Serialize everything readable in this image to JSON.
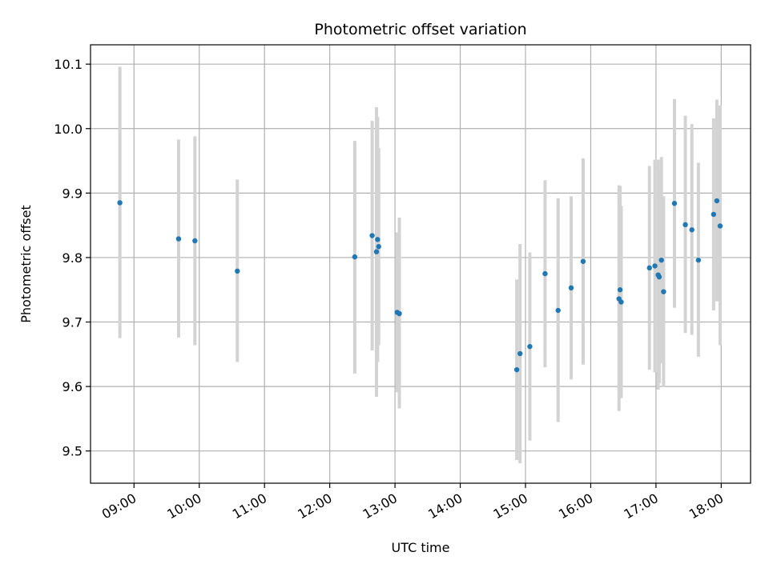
{
  "chart_data": {
    "type": "scatter",
    "title": "Photometric offset variation",
    "xlabel": "UTC time",
    "ylabel": "Photometric offset",
    "x_unit": "UTC time (HH:MM)",
    "xlim": [
      "08:20",
      "18:27"
    ],
    "ylim": [
      9.45,
      10.13
    ],
    "grid": true,
    "marker_color": "#1f77b4",
    "errorbar_color": "#d3d3d3",
    "x_ticks": [
      "09:00",
      "10:00",
      "11:00",
      "12:00",
      "13:00",
      "14:00",
      "15:00",
      "16:00",
      "17:00",
      "18:00"
    ],
    "y_ticks": [
      9.5,
      9.6,
      9.7,
      9.8,
      9.9,
      10.0,
      10.1
    ],
    "y_tick_labels": [
      "9.5",
      "9.6",
      "9.7",
      "9.8",
      "9.9",
      "10.0",
      "10.1"
    ],
    "points": [
      {
        "x": "08:47",
        "y": 9.885,
        "ylow": 9.675,
        "yhigh": 10.096
      },
      {
        "x": "09:41",
        "y": 9.829,
        "ylow": 9.676,
        "yhigh": 9.983
      },
      {
        "x": "09:56",
        "y": 9.826,
        "ylow": 9.664,
        "yhigh": 9.988
      },
      {
        "x": "10:35",
        "y": 9.779,
        "ylow": 9.638,
        "yhigh": 9.921
      },
      {
        "x": "12:23",
        "y": 9.801,
        "ylow": 9.62,
        "yhigh": 9.981
      },
      {
        "x": "12:39",
        "y": 9.834,
        "ylow": 9.656,
        "yhigh": 10.012
      },
      {
        "x": "12:43",
        "y": 9.809,
        "ylow": 9.584,
        "yhigh": 10.033
      },
      {
        "x": "12:44",
        "y": 9.828,
        "ylow": 9.638,
        "yhigh": 10.018
      },
      {
        "x": "12:45",
        "y": 9.817,
        "ylow": 9.664,
        "yhigh": 9.97
      },
      {
        "x": "13:02",
        "y": 9.715,
        "ylow": 9.591,
        "yhigh": 9.839
      },
      {
        "x": "13:04",
        "y": 9.713,
        "ylow": 9.566,
        "yhigh": 9.862
      },
      {
        "x": "14:52",
        "y": 9.626,
        "ylow": 9.486,
        "yhigh": 9.766
      },
      {
        "x": "14:55",
        "y": 9.651,
        "ylow": 9.481,
        "yhigh": 9.821
      },
      {
        "x": "15:04",
        "y": 9.662,
        "ylow": 9.516,
        "yhigh": 9.808
      },
      {
        "x": "15:18",
        "y": 9.775,
        "ylow": 9.63,
        "yhigh": 9.92
      },
      {
        "x": "15:30",
        "y": 9.718,
        "ylow": 9.545,
        "yhigh": 9.892
      },
      {
        "x": "15:42",
        "y": 9.753,
        "ylow": 9.611,
        "yhigh": 9.895
      },
      {
        "x": "15:53",
        "y": 9.794,
        "ylow": 9.634,
        "yhigh": 9.954
      },
      {
        "x": "16:26",
        "y": 9.736,
        "ylow": 9.562,
        "yhigh": 9.912
      },
      {
        "x": "16:27",
        "y": 9.75,
        "ylow": 9.619,
        "yhigh": 9.911
      },
      {
        "x": "16:28",
        "y": 9.731,
        "ylow": 9.582,
        "yhigh": 9.88
      },
      {
        "x": "16:54",
        "y": 9.784,
        "ylow": 9.626,
        "yhigh": 9.942
      },
      {
        "x": "16:59",
        "y": 9.787,
        "ylow": 9.622,
        "yhigh": 9.952
      },
      {
        "x": "17:02",
        "y": 9.773,
        "ylow": 9.595,
        "yhigh": 9.952
      },
      {
        "x": "17:03",
        "y": 9.77,
        "ylow": 9.605,
        "yhigh": 9.935
      },
      {
        "x": "17:05",
        "y": 9.796,
        "ylow": 9.636,
        "yhigh": 9.956
      },
      {
        "x": "17:07",
        "y": 9.747,
        "ylow": 9.599,
        "yhigh": 9.895
      },
      {
        "x": "17:17",
        "y": 9.884,
        "ylow": 9.722,
        "yhigh": 10.046
      },
      {
        "x": "17:27",
        "y": 9.851,
        "ylow": 9.683,
        "yhigh": 10.02
      },
      {
        "x": "17:33",
        "y": 9.843,
        "ylow": 9.68,
        "yhigh": 10.007
      },
      {
        "x": "17:39",
        "y": 9.796,
        "ylow": 9.646,
        "yhigh": 9.947
      },
      {
        "x": "17:53",
        "y": 9.867,
        "ylow": 9.718,
        "yhigh": 10.016
      },
      {
        "x": "17:56",
        "y": 9.888,
        "ylow": 9.732,
        "yhigh": 10.045
      },
      {
        "x": "17:59",
        "y": 9.849,
        "ylow": 9.664,
        "yhigh": 10.036
      }
    ]
  }
}
